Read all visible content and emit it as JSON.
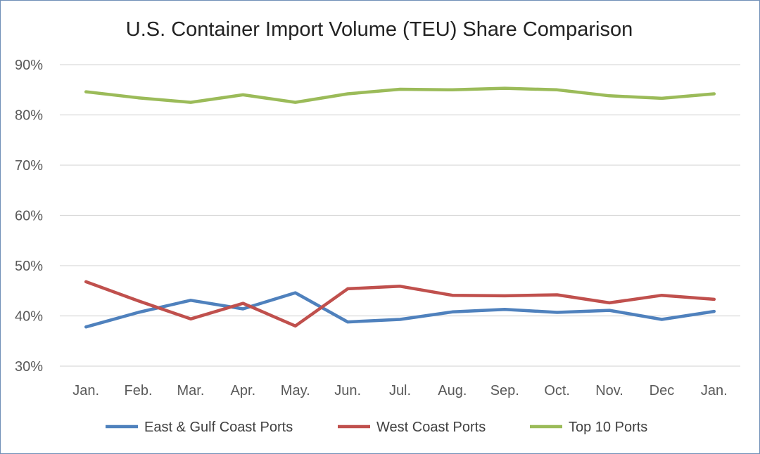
{
  "chart_data": {
    "type": "line",
    "title": "U.S. Container Import Volume (TEU) Share Comparison",
    "xlabel": "",
    "ylabel": "",
    "categories": [
      "Jan.",
      "Feb.",
      "Mar.",
      "Apr.",
      "May.",
      "Jun.",
      "Jul.",
      "Aug.",
      "Sep.",
      "Oct.",
      "Nov.",
      "Dec",
      "Jan."
    ],
    "ylim": [
      30,
      90
    ],
    "yticks": [
      30,
      40,
      50,
      60,
      70,
      80,
      90
    ],
    "ytick_labels": [
      "30%",
      "40%",
      "50%",
      "60%",
      "70%",
      "80%",
      "90%"
    ],
    "grid": true,
    "legend_position": "bottom",
    "series": [
      {
        "name": "East & Gulf Coast Ports",
        "color": "#4f81bd",
        "values": [
          37.8,
          40.7,
          43.1,
          41.4,
          44.6,
          38.8,
          39.3,
          40.8,
          41.3,
          40.7,
          41.1,
          39.3,
          40.9
        ]
      },
      {
        "name": "West Coast Ports",
        "color": "#c0504d",
        "values": [
          46.8,
          43.0,
          39.4,
          42.5,
          38.0,
          45.4,
          45.9,
          44.1,
          44.0,
          44.2,
          42.6,
          44.1,
          43.3
        ]
      },
      {
        "name": "Top 10 Ports",
        "color": "#9bbb59",
        "values": [
          84.6,
          83.4,
          82.5,
          84.0,
          82.5,
          84.2,
          85.1,
          85.0,
          85.3,
          85.0,
          83.8,
          83.3,
          84.2
        ]
      }
    ]
  }
}
